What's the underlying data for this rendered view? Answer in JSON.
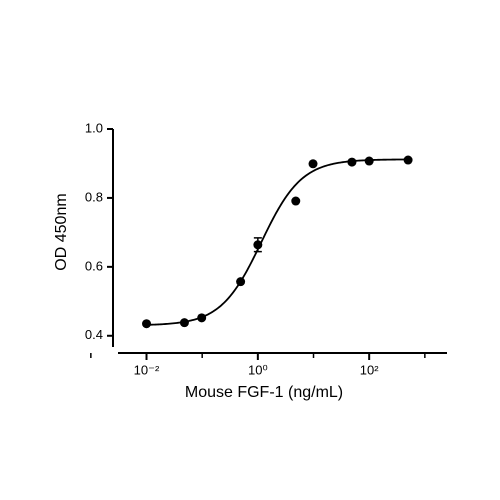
{
  "chart_data": {
    "type": "scatter",
    "xlabel": "Mouse FGF-1 (ng/mL)",
    "ylabel": "OD 450nm",
    "xscale": "log",
    "x": [
      0.01,
      0.048,
      0.098,
      0.49,
      1.0,
      4.8,
      9.8,
      49,
      100,
      500
    ],
    "values": [
      0.435,
      0.438,
      0.452,
      0.557,
      0.664,
      0.791,
      0.899,
      0.904,
      0.907,
      0.91
    ],
    "errors": [
      null,
      null,
      null,
      null,
      0.02,
      null,
      null,
      null,
      null,
      null
    ],
    "color": "#000000",
    "fit": {
      "bottom": 0.43,
      "top": 0.912,
      "ec50": 1.15,
      "hill": 1.2
    },
    "xlim": [
      0.0025,
      2500
    ],
    "ylim": [
      0.35,
      1.0
    ],
    "xticks": [
      {
        "value": 0.01,
        "label": "10⁻²"
      },
      {
        "value": 1,
        "label": "10⁰"
      },
      {
        "value": 100,
        "label": "10²"
      }
    ],
    "xminorticks": [
      0.001,
      0.1,
      10,
      1000
    ],
    "yticks": [
      {
        "value": 0.4,
        "label": "0.4"
      },
      {
        "value": 0.6,
        "label": "0.6"
      },
      {
        "value": 0.8,
        "label": "0.8"
      },
      {
        "value": 1.0,
        "label": "1.0"
      }
    ]
  }
}
